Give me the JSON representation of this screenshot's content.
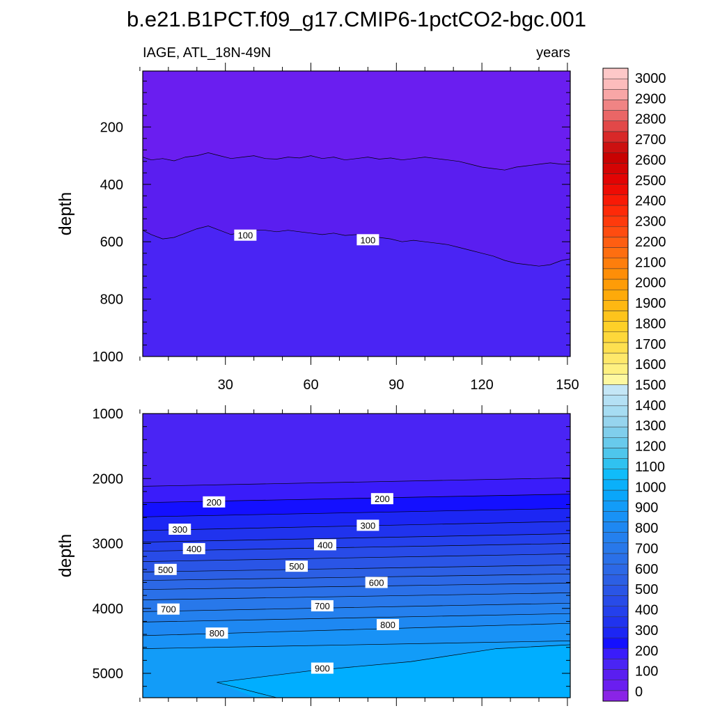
{
  "title": "b.e21.B1PCT.f09_g17.CMIP6-1pctCO2-bgc.001",
  "chart_data": {
    "type": "contour",
    "variable": "IAGE",
    "region": "ATL_18N-49N",
    "left_subtitle": "IAGE, ATL_18N-49N",
    "units": "years",
    "xlabel": "",
    "x_ticks": [
      "30",
      "60",
      "90",
      "120",
      "150"
    ],
    "x_tick_values": [
      30,
      60,
      90,
      120,
      150
    ],
    "xlim": [
      1,
      151
    ],
    "panels": [
      {
        "name": "upper",
        "ylabel": "depth",
        "ylim": [
          5,
          1000
        ],
        "y_ticks": [
          "200",
          "400",
          "600",
          "800",
          "1000"
        ],
        "y_tick_values": [
          200,
          400,
          600,
          800,
          1000
        ],
        "bands": [
          {
            "range": "0-50",
            "color": "#6a1ef0"
          },
          {
            "range": "50-100",
            "color": "#5a1ef0"
          },
          {
            "range": "100-150",
            "color": "#4a24f4"
          }
        ],
        "contours": [
          {
            "level": 50,
            "labeled": false,
            "x": [
              1,
              4,
              8,
              12,
              16,
              20,
              24,
              28,
              32,
              36,
              40,
              44,
              48,
              52,
              56,
              60,
              64,
              68,
              72,
              76,
              80,
              84,
              88,
              92,
              96,
              100,
              104,
              108,
              112,
              116,
              120,
              124,
              128,
              132,
              136,
              140,
              144,
              148,
              151
            ],
            "depth": [
              305,
              315,
              310,
              318,
              305,
              300,
              290,
              300,
              310,
              305,
              300,
              310,
              312,
              305,
              308,
              300,
              310,
              305,
              315,
              310,
              305,
              312,
              308,
              315,
              310,
              305,
              310,
              315,
              320,
              330,
              340,
              345,
              350,
              340,
              335,
              330,
              325,
              330,
              330
            ]
          },
          {
            "level": 100,
            "labeled": true,
            "x": [
              1,
              4,
              8,
              12,
              16,
              20,
              24,
              28,
              32,
              36,
              40,
              44,
              48,
              52,
              56,
              60,
              64,
              68,
              72,
              76,
              80,
              84,
              88,
              92,
              96,
              100,
              104,
              108,
              112,
              116,
              120,
              124,
              128,
              132,
              136,
              140,
              144,
              148,
              151
            ],
            "depth": [
              560,
              575,
              590,
              585,
              570,
              555,
              545,
              560,
              575,
              565,
              560,
              560,
              565,
              560,
              565,
              570,
              575,
              570,
              578,
              575,
              580,
              585,
              590,
              600,
              595,
              600,
              605,
              610,
              620,
              630,
              640,
              650,
              665,
              675,
              680,
              685,
              680,
              665,
              660
            ]
          }
        ],
        "contour_labels": [
          {
            "text": "100",
            "x": 37,
            "depth": 577
          },
          {
            "text": "100",
            "x": 80,
            "depth": 593
          }
        ]
      },
      {
        "name": "lower",
        "ylabel": "depth",
        "ylim": [
          1000,
          5375
        ],
        "y_ticks": [
          "1000",
          "2000",
          "3000",
          "4000",
          "5000"
        ],
        "y_tick_values": [
          1000,
          2000,
          3000,
          4000,
          5000
        ],
        "bands": [
          {
            "range": "100-150",
            "color": "#4a24f4"
          },
          {
            "range": "150-200",
            "color": "#3a1cfa"
          },
          {
            "range": "200-250",
            "color": "#1410ff"
          },
          {
            "range": "250-300",
            "color": "#1c26f4"
          },
          {
            "range": "300-350",
            "color": "#2033ee"
          },
          {
            "range": "350-400",
            "color": "#2440ec"
          },
          {
            "range": "400-450",
            "color": "#284be8"
          },
          {
            "range": "450-500",
            "color": "#2a55e6"
          },
          {
            "range": "500-550",
            "color": "#2c5fe4"
          },
          {
            "range": "550-600",
            "color": "#2c68e6"
          },
          {
            "range": "600-650",
            "color": "#2a70e8"
          },
          {
            "range": "650-700",
            "color": "#2878ea"
          },
          {
            "range": "700-750",
            "color": "#2480ee"
          },
          {
            "range": "750-800",
            "color": "#1e88f2"
          },
          {
            "range": "800-850",
            "color": "#1892f6"
          },
          {
            "range": "850-900",
            "color": "#129cf8"
          },
          {
            "range": "900-950",
            "color": "#0aa6fa"
          }
        ],
        "contours": [
          {
            "level": 150,
            "labeled": false,
            "x": [
              1,
              151
            ],
            "depth": [
              2120,
              1990
            ]
          },
          {
            "level": 200,
            "labeled": true,
            "x": [
              1,
              151
            ],
            "depth": [
              2370,
              2240
            ]
          },
          {
            "level": 250,
            "labeled": false,
            "x": [
              1,
              151
            ],
            "depth": [
              2590,
              2460
            ]
          },
          {
            "level": 300,
            "labeled": true,
            "x": [
              1,
              151
            ],
            "depth": [
              2800,
              2660
            ]
          },
          {
            "level": 350,
            "labeled": false,
            "x": [
              1,
              151
            ],
            "depth": [
              2980,
              2850
            ]
          },
          {
            "level": 400,
            "labeled": true,
            "x": [
              1,
              151
            ],
            "depth": [
              3120,
              3000
            ]
          },
          {
            "level": 450,
            "labeled": false,
            "x": [
              1,
              151
            ],
            "depth": [
              3280,
              3160
            ]
          },
          {
            "level": 500,
            "labeled": true,
            "x": [
              1,
              151
            ],
            "depth": [
              3440,
              3330
            ]
          },
          {
            "level": 550,
            "labeled": false,
            "x": [
              1,
              151
            ],
            "depth": [
              3570,
              3470
            ]
          },
          {
            "level": 600,
            "labeled": true,
            "x": [
              1,
              151
            ],
            "depth": [
              3710,
              3610
            ]
          },
          {
            "level": 650,
            "labeled": false,
            "x": [
              1,
              151
            ],
            "depth": [
              3870,
              3760
            ]
          },
          {
            "level": 700,
            "labeled": true,
            "x": [
              1,
              151
            ],
            "depth": [
              4050,
              3920
            ]
          },
          {
            "level": 750,
            "labeled": false,
            "x": [
              1,
              151
            ],
            "depth": [
              4210,
              4080
            ]
          },
          {
            "level": 800,
            "labeled": true,
            "x": [
              1,
              151
            ],
            "depth": [
              4420,
              4230
            ]
          },
          {
            "level": 850,
            "labeled": false,
            "x": [
              1,
              151
            ],
            "depth": [
              4620,
              4500
            ]
          }
        ],
        "contour_labels": [
          {
            "text": "200",
            "x": 26,
            "depth": 2360
          },
          {
            "text": "200",
            "x": 85,
            "depth": 2310
          },
          {
            "text": "300",
            "x": 14,
            "depth": 2780
          },
          {
            "text": "300",
            "x": 80,
            "depth": 2720
          },
          {
            "text": "400",
            "x": 19,
            "depth": 3080
          },
          {
            "text": "400",
            "x": 65,
            "depth": 3020
          },
          {
            "text": "500",
            "x": 9,
            "depth": 3400
          },
          {
            "text": "500",
            "x": 55,
            "depth": 3350
          },
          {
            "text": "600",
            "x": 83,
            "depth": 3600
          },
          {
            "text": "700",
            "x": 10,
            "depth": 4010
          },
          {
            "text": "700",
            "x": 64,
            "depth": 3960
          },
          {
            "text": "800",
            "x": 27,
            "depth": 4380
          },
          {
            "text": "800",
            "x": 87,
            "depth": 4250
          },
          {
            "text": "900",
            "x": 64,
            "depth": 4920
          }
        ]
      }
    ],
    "colorbar": {
      "labels": [
        "3000",
        "2900",
        "2800",
        "2700",
        "2600",
        "2500",
        "2400",
        "2300",
        "2200",
        "2100",
        "2000",
        "1900",
        "1800",
        "1700",
        "1600",
        "1500",
        "1400",
        "1300",
        "1200",
        "1100",
        "1000",
        "900",
        "800",
        "700",
        "600",
        "500",
        "400",
        "300",
        "200",
        "100",
        "0"
      ],
      "colors": [
        "#8a24e6",
        "#6a1ef0",
        "#5a1ef0",
        "#4a24f4",
        "#3a1cfa",
        "#1410ff",
        "#1c26f4",
        "#2033ee",
        "#2440ec",
        "#284be8",
        "#2a55e6",
        "#2c5fe4",
        "#2c68e6",
        "#2a70e8",
        "#2878ea",
        "#2480ee",
        "#1e88f2",
        "#1892f6",
        "#129cf8",
        "#0aa6fa",
        "#0ab0fa",
        "#10bcfa",
        "#30c2f0",
        "#4ec6ec",
        "#68caec",
        "#80ceec",
        "#96d4ee",
        "#a6dcf2",
        "#b4e0f4",
        "#c4e6f6",
        "#fef8a0",
        "#fef080",
        "#fee86a",
        "#fee050",
        "#fed83a",
        "#fed028",
        "#fec41c",
        "#feb812",
        "#feaa0a",
        "#fe9c08",
        "#fe8e08",
        "#fe7e0c",
        "#fe6e10",
        "#fe5e12",
        "#fe4c10",
        "#fe3a0c",
        "#fe2a08",
        "#f81a06",
        "#ee0c04",
        "#e20404",
        "#d40404",
        "#c80202",
        "#cc1010",
        "#d82828",
        "#e24848",
        "#ea6666",
        "#f08484",
        "#f8a6a6",
        "#fcbcbc",
        "#fdc8c8"
      ]
    }
  }
}
